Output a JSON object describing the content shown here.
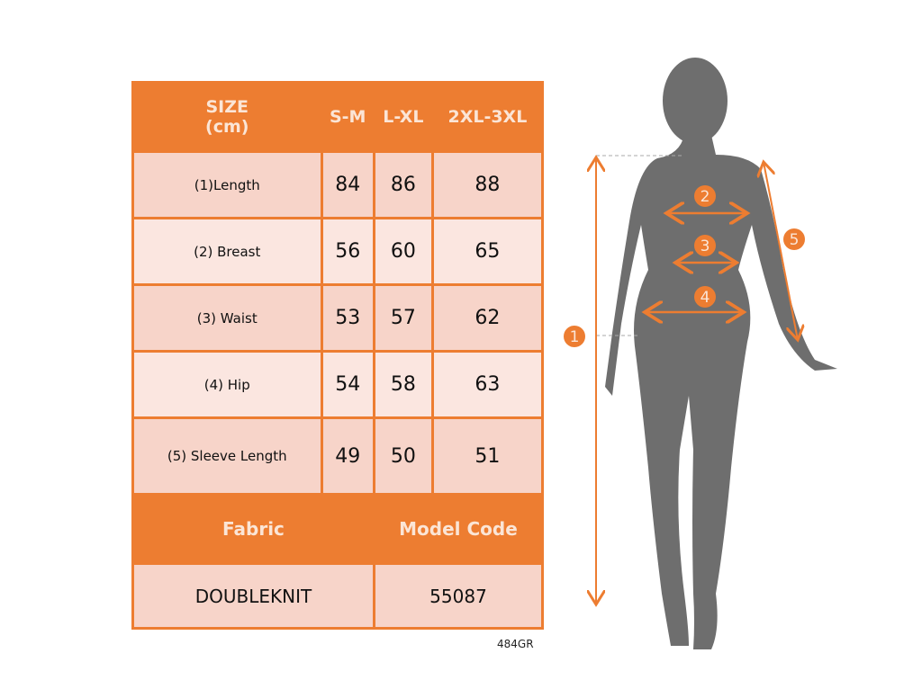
{
  "table": {
    "header": [
      "SIZE\n(cm)",
      "S-M",
      "L-XL",
      "2XL-3XL"
    ],
    "rows": [
      {
        "label": "(1)Length",
        "values": [
          "84",
          "86",
          "88"
        ]
      },
      {
        "label": "(2) Breast",
        "values": [
          "56",
          "60",
          "65"
        ]
      },
      {
        "label": "(3) Waist",
        "values": [
          "53",
          "57",
          "62"
        ]
      },
      {
        "label": "(4) Hip",
        "values": [
          "54",
          "58",
          "63"
        ]
      },
      {
        "label": "(5) Sleeve Length",
        "values": [
          "49",
          "50",
          "51"
        ]
      }
    ],
    "footer_headers": [
      "Fabric",
      "Model Code"
    ],
    "footer_values": [
      "DOUBLEKNIT",
      "55087"
    ]
  },
  "product_code": "484GR",
  "figure": {
    "markers": [
      "1",
      "2",
      "3",
      "4",
      "5"
    ]
  },
  "colors": {
    "accent": "#ED7D31",
    "silhouette": "#6E6E6E",
    "cell_dark": "#F7D4C9",
    "cell_light": "#FBE6E0"
  }
}
